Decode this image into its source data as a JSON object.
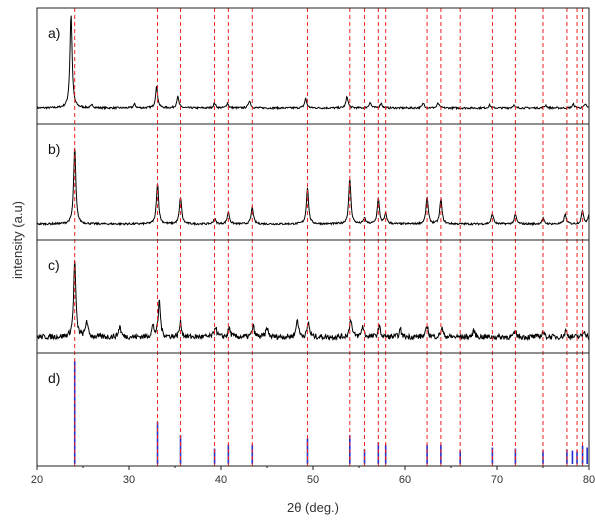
{
  "chart_data": {
    "type": "line",
    "xlabel": "2θ (deg.)",
    "ylabel": "intensity (a.u)",
    "xlim": [
      20,
      80
    ],
    "x_ticks": [
      20,
      30,
      40,
      50,
      60,
      70,
      80
    ],
    "grid": false,
    "colors": {
      "pattern": "#000000",
      "reference": "#1f2fd0",
      "guide": "#ee2222"
    },
    "reference_lines_x": [
      24.1,
      33.1,
      35.6,
      39.3,
      40.8,
      43.4,
      49.4,
      54.0,
      55.6,
      57.1,
      57.9,
      62.4,
      63.9,
      66.0,
      69.5,
      72.0,
      75.0,
      77.6,
      78.7,
      79.3,
      80.0
    ],
    "panels": [
      {
        "label": "a)",
        "series_type": "line",
        "baseline": 0.05,
        "noise": 0.01,
        "peaks": [
          {
            "x": 23.7,
            "y": 1.0
          },
          {
            "x": 26.0,
            "y": 0.03
          },
          {
            "x": 30.6,
            "y": 0.04
          },
          {
            "x": 33.0,
            "y": 0.23
          },
          {
            "x": 35.3,
            "y": 0.12
          },
          {
            "x": 39.3,
            "y": 0.05
          },
          {
            "x": 40.7,
            "y": 0.05
          },
          {
            "x": 43.1,
            "y": 0.08
          },
          {
            "x": 49.2,
            "y": 0.1
          },
          {
            "x": 53.7,
            "y": 0.12
          },
          {
            "x": 56.2,
            "y": 0.06
          },
          {
            "x": 57.4,
            "y": 0.05
          },
          {
            "x": 62.0,
            "y": 0.05
          },
          {
            "x": 63.6,
            "y": 0.05
          },
          {
            "x": 69.2,
            "y": 0.03
          },
          {
            "x": 71.8,
            "y": 0.03
          },
          {
            "x": 75.3,
            "y": 0.03
          },
          {
            "x": 78.3,
            "y": 0.04
          },
          {
            "x": 79.6,
            "y": 0.04
          }
        ]
      },
      {
        "label": "b)",
        "series_type": "line",
        "baseline": 0.04,
        "noise": 0.01,
        "peaks": [
          {
            "x": 24.1,
            "y": 0.82
          },
          {
            "x": 33.1,
            "y": 0.44
          },
          {
            "x": 35.6,
            "y": 0.29
          },
          {
            "x": 39.3,
            "y": 0.06
          },
          {
            "x": 40.8,
            "y": 0.13
          },
          {
            "x": 43.4,
            "y": 0.18
          },
          {
            "x": 49.4,
            "y": 0.39
          },
          {
            "x": 54.0,
            "y": 0.48
          },
          {
            "x": 55.6,
            "y": 0.06
          },
          {
            "x": 57.1,
            "y": 0.27
          },
          {
            "x": 57.9,
            "y": 0.11
          },
          {
            "x": 62.4,
            "y": 0.29
          },
          {
            "x": 63.9,
            "y": 0.27
          },
          {
            "x": 69.5,
            "y": 0.11
          },
          {
            "x": 72.0,
            "y": 0.1
          },
          {
            "x": 75.0,
            "y": 0.06
          },
          {
            "x": 77.4,
            "y": 0.1
          },
          {
            "x": 79.3,
            "y": 0.14
          },
          {
            "x": 80.0,
            "y": 0.1
          }
        ]
      },
      {
        "label": "c)",
        "series_type": "line",
        "baseline": 0.1,
        "noise": 0.03,
        "peaks": [
          {
            "x": 24.1,
            "y": 0.85
          },
          {
            "x": 25.4,
            "y": 0.18
          },
          {
            "x": 29.0,
            "y": 0.12
          },
          {
            "x": 32.6,
            "y": 0.12
          },
          {
            "x": 33.3,
            "y": 0.4
          },
          {
            "x": 35.6,
            "y": 0.16
          },
          {
            "x": 39.4,
            "y": 0.12
          },
          {
            "x": 40.9,
            "y": 0.1
          },
          {
            "x": 43.5,
            "y": 0.12
          },
          {
            "x": 45.0,
            "y": 0.1
          },
          {
            "x": 48.3,
            "y": 0.2
          },
          {
            "x": 49.5,
            "y": 0.16
          },
          {
            "x": 54.1,
            "y": 0.21
          },
          {
            "x": 55.4,
            "y": 0.12
          },
          {
            "x": 57.2,
            "y": 0.12
          },
          {
            "x": 59.5,
            "y": 0.08
          },
          {
            "x": 62.4,
            "y": 0.12
          },
          {
            "x": 64.0,
            "y": 0.1
          },
          {
            "x": 67.5,
            "y": 0.07
          },
          {
            "x": 72.0,
            "y": 0.06
          },
          {
            "x": 75.0,
            "y": 0.06
          },
          {
            "x": 77.5,
            "y": 0.07
          },
          {
            "x": 79.5,
            "y": 0.07
          }
        ]
      },
      {
        "label": "d)",
        "series_type": "stick",
        "sticks": [
          {
            "x": 24.1,
            "y": 1.0
          },
          {
            "x": 33.1,
            "y": 0.41
          },
          {
            "x": 35.6,
            "y": 0.28
          },
          {
            "x": 39.3,
            "y": 0.15
          },
          {
            "x": 40.8,
            "y": 0.19
          },
          {
            "x": 43.4,
            "y": 0.19
          },
          {
            "x": 49.4,
            "y": 0.25
          },
          {
            "x": 54.0,
            "y": 0.28
          },
          {
            "x": 55.6,
            "y": 0.14
          },
          {
            "x": 57.1,
            "y": 0.21
          },
          {
            "x": 57.9,
            "y": 0.19
          },
          {
            "x": 62.4,
            "y": 0.19
          },
          {
            "x": 63.9,
            "y": 0.19
          },
          {
            "x": 66.0,
            "y": 0.13
          },
          {
            "x": 69.5,
            "y": 0.16
          },
          {
            "x": 72.0,
            "y": 0.15
          },
          {
            "x": 75.0,
            "y": 0.13
          },
          {
            "x": 77.6,
            "y": 0.14
          },
          {
            "x": 78.2,
            "y": 0.13
          },
          {
            "x": 78.7,
            "y": 0.13
          },
          {
            "x": 79.3,
            "y": 0.18
          },
          {
            "x": 79.8,
            "y": 0.16
          }
        ]
      }
    ]
  }
}
